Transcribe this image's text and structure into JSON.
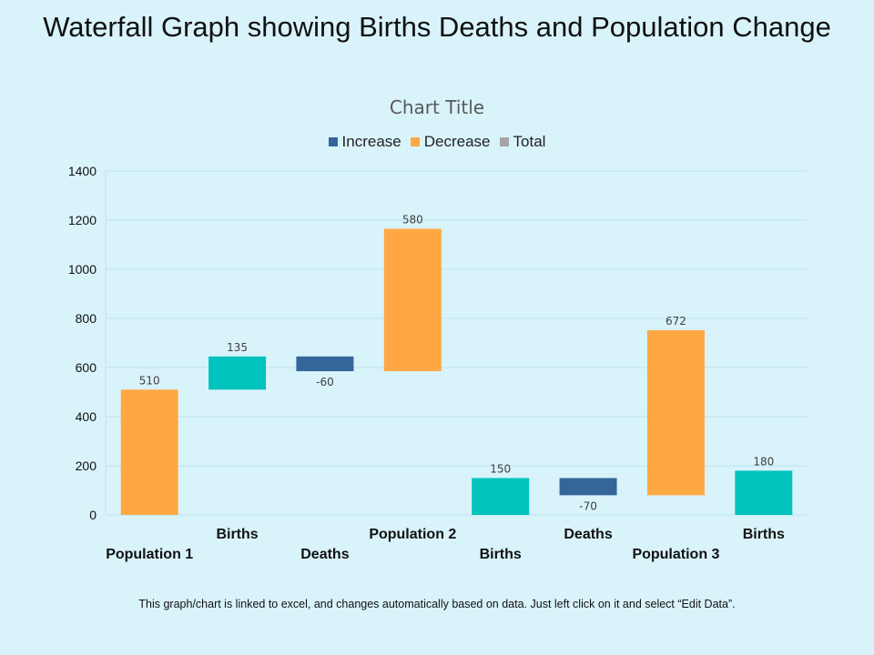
{
  "slide": {
    "title": "Waterfall Graph showing Births Deaths and Population Change",
    "footnote": "This graph/chart is linked to excel, and changes automatically based on data. Just left click on it and select “Edit Data”."
  },
  "legend": [
    {
      "label": "Increase",
      "color": "#35669a"
    },
    {
      "label": "Decrease",
      "color": "#ffa843"
    },
    {
      "label": "Total",
      "color": "#a5a5a5"
    }
  ],
  "colors": {
    "population": "#ffa843",
    "births": "#00c3bd",
    "deaths": "#35669a",
    "gridline": "#b9e6ef",
    "axis_text": "#111111",
    "value_label": "#404040"
  },
  "chart_data": {
    "type": "bar",
    "subtype": "waterfall",
    "title": "Chart Title",
    "ylim": [
      0,
      1400
    ],
    "yticks": [
      0,
      200,
      400,
      600,
      800,
      1000,
      1200,
      1400
    ],
    "grid": true,
    "legend_position": "top",
    "categories": [
      "Population 1",
      "Births",
      "Deaths",
      "Population 2",
      "Births",
      "Deaths",
      "Population 3",
      "Births"
    ],
    "bars": [
      {
        "category": "Population 1",
        "kind": "population",
        "base": 0,
        "top": 510,
        "label": "510"
      },
      {
        "category": "Births",
        "kind": "births",
        "base": 510,
        "top": 645,
        "label": "135"
      },
      {
        "category": "Deaths",
        "kind": "deaths",
        "base": 585,
        "top": 645,
        "label": "-60"
      },
      {
        "category": "Population 2",
        "kind": "population",
        "base": 585,
        "top": 1165,
        "label": "580"
      },
      {
        "category": "Births",
        "kind": "births",
        "base": 0,
        "top": 150,
        "label": "150"
      },
      {
        "category": "Deaths",
        "kind": "deaths",
        "base": 80,
        "top": 150,
        "label": "-70"
      },
      {
        "category": "Population 3",
        "kind": "population",
        "base": 80,
        "top": 752,
        "label": "672"
      },
      {
        "category": "Births",
        "kind": "births",
        "base": 0,
        "top": 180,
        "label": "180"
      }
    ]
  }
}
